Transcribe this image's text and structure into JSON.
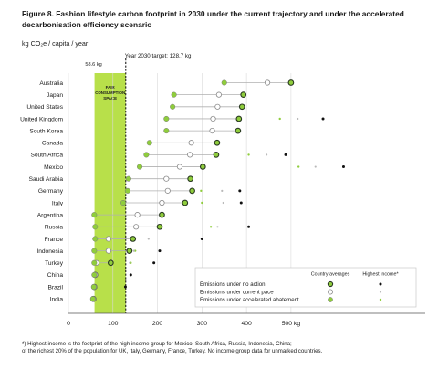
{
  "figure": {
    "title": "Figure 8. Fashion lifestyle carbon footprint in 2030 under the current trajectory and under the accelerated decarbonisation efficiency scenario",
    "unit": "kg CO₂e / capita / year",
    "footnote_1": "*) Highest income is the footprint of the high income group for Mexico, South Africa, Russia, Indonesia, China;",
    "footnote_2": "of the richest 20% of the population for UK, Italy, Germany, France, Turkey. No income group data for unmarked countries."
  },
  "chart_data": {
    "type": "scatter",
    "xlabel": "",
    "ylabel": "kg CO₂e / capita / year",
    "xlim": [
      0,
      580
    ],
    "x_ticks": [
      0,
      100,
      200,
      300,
      400,
      500
    ],
    "x_tick_labels": [
      "0",
      "100",
      "200",
      "300",
      "400",
      "500 kg"
    ],
    "grid": true,
    "band": {
      "label_line1": "FAIR",
      "label_line2": "CONSUMPTION",
      "label_line3": "SPACE",
      "from": 58.6,
      "to": 128.7,
      "low_label": "58.6 kg",
      "color": "#b8e04a"
    },
    "target": {
      "label": "Year 2030 target: 128.7 kg",
      "value": 128.7
    },
    "categories": [
      "Australia",
      "Japan",
      "United States",
      "United Kingdom",
      "South Korea",
      "Canada",
      "South Africa",
      "Mexico",
      "Saudi Arabia",
      "Germany",
      "Italy",
      "Argentina",
      "Russia",
      "France",
      "Indonesia",
      "Turkey",
      "China",
      "Brazil",
      "India"
    ],
    "series": [
      {
        "name": "Emissions under no action",
        "group": "country",
        "values": [
          500,
          393,
          390,
          383,
          381,
          334,
          332,
          302,
          274,
          278,
          262,
          210,
          205,
          145,
          137,
          95,
          60,
          58,
          56
        ]
      },
      {
        "name": "Emissions under current pace",
        "group": "country",
        "values": [
          447,
          338,
          335,
          325,
          323,
          276,
          273,
          250,
          220,
          223,
          210,
          155,
          152,
          90,
          90,
          63,
          60,
          58,
          56
        ]
      },
      {
        "name": "Emissions under accelerated abatement",
        "group": "country",
        "values": [
          350,
          237,
          234,
          220,
          220,
          182,
          175,
          160,
          135,
          133,
          123,
          58,
          60,
          60,
          58,
          58,
          58,
          57,
          55
        ]
      },
      {
        "name": "Emissions under no action",
        "group": "highest_income",
        "values": [
          null,
          null,
          null,
          572,
          null,
          null,
          488,
          618,
          null,
          385,
          388,
          null,
          405,
          300,
          205,
          192,
          140,
          128,
          null
        ]
      },
      {
        "name": "Emissions under current pace",
        "group": "highest_income",
        "values": [
          null,
          null,
          null,
          515,
          null,
          null,
          445,
          555,
          null,
          345,
          348,
          null,
          335,
          180,
          147,
          138,
          null,
          null,
          null
        ]
      },
      {
        "name": "Emissions under accelerated abatement",
        "group": "highest_income",
        "values": [
          null,
          null,
          null,
          475,
          null,
          null,
          405,
          517,
          null,
          298,
          300,
          null,
          320,
          145,
          150,
          140,
          null,
          null,
          null
        ]
      }
    ],
    "legend": {
      "placement": "bottom-right",
      "col_country": "Country averages",
      "col_income": "Highest income*",
      "rows": [
        "Emissions under no action",
        "Emissions under current pace",
        "Emissions under accelerated abatement"
      ]
    },
    "colors": {
      "green": "#8fcd3c",
      "dark": "#2a3a22",
      "band": "#b8e04a",
      "grid": "#d9d9d9",
      "line": "#b0b0b0"
    }
  }
}
